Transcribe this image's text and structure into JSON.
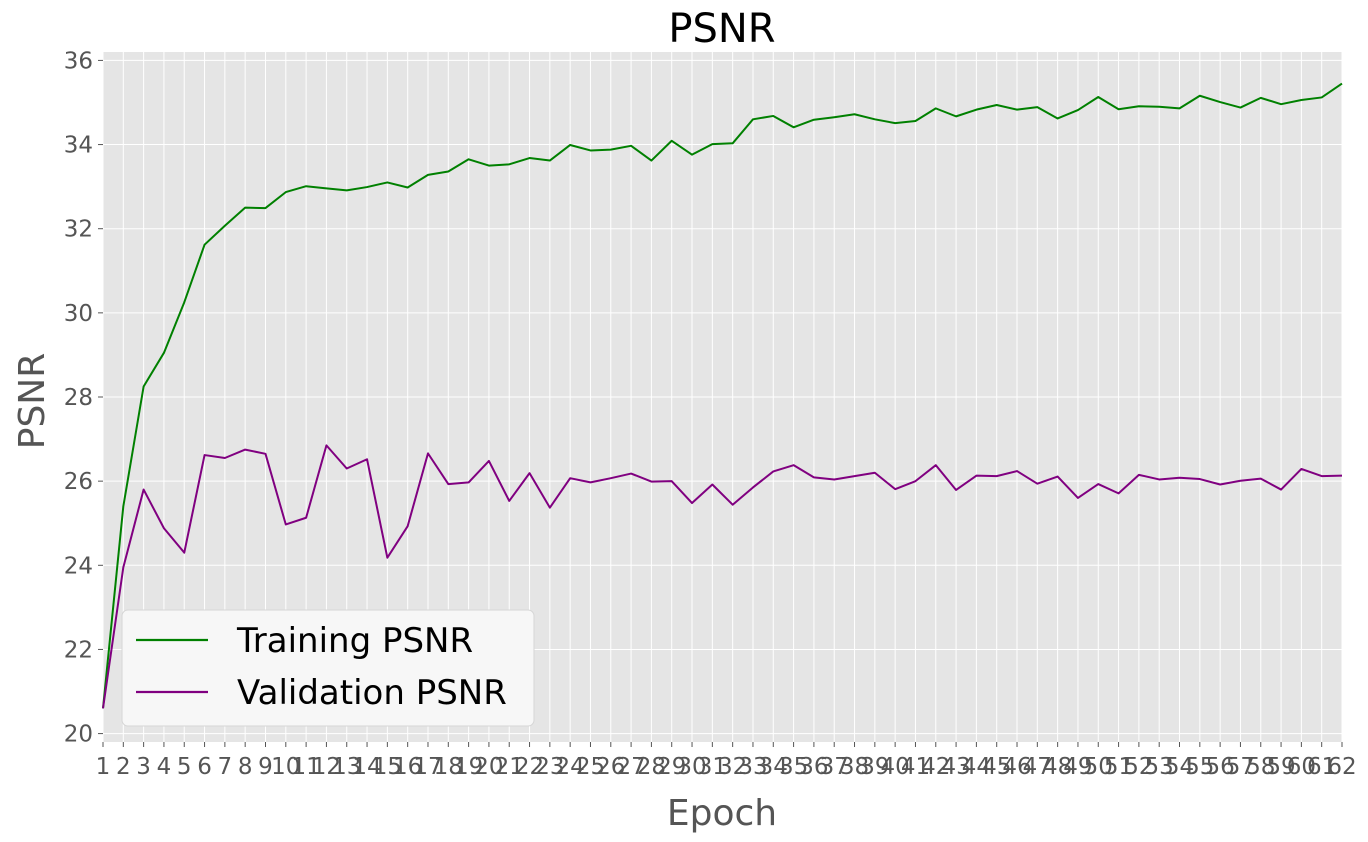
{
  "chart_data": {
    "type": "line",
    "title": "PSNR",
    "xlabel": "Epoch",
    "ylabel": "PSNR",
    "xlim": [
      1,
      62
    ],
    "ylim": [
      19.8,
      36.2
    ],
    "yticks": [
      20,
      22,
      24,
      26,
      28,
      30,
      32,
      34,
      36
    ],
    "grid": true,
    "legend_position": "lower-left",
    "x": [
      1,
      2,
      3,
      4,
      5,
      6,
      7,
      8,
      9,
      10,
      11,
      12,
      13,
      14,
      15,
      16,
      17,
      18,
      19,
      20,
      21,
      22,
      23,
      24,
      25,
      26,
      27,
      28,
      29,
      30,
      31,
      32,
      33,
      34,
      35,
      36,
      37,
      38,
      39,
      40,
      41,
      42,
      43,
      44,
      45,
      46,
      47,
      48,
      49,
      50,
      51,
      52,
      53,
      54,
      55,
      56,
      57,
      58,
      59,
      60,
      61,
      62
    ],
    "series": [
      {
        "name": "Training PSNR",
        "color": "#008000",
        "values": [
          20.6,
          25.4,
          28.25,
          29.05,
          30.25,
          31.62,
          32.07,
          32.5,
          32.49,
          32.87,
          33.01,
          32.96,
          32.91,
          32.99,
          33.1,
          32.98,
          33.28,
          33.36,
          33.65,
          33.5,
          33.53,
          33.68,
          33.62,
          33.99,
          33.86,
          33.88,
          33.97,
          33.62,
          34.09,
          33.76,
          34.01,
          34.03,
          34.6,
          34.68,
          34.41,
          34.59,
          34.65,
          34.72,
          34.6,
          34.51,
          34.56,
          34.86,
          34.67,
          34.83,
          34.94,
          34.83,
          34.89,
          34.62,
          34.82,
          35.13,
          34.84,
          34.91,
          34.9,
          34.86,
          35.16,
          35.01,
          34.88,
          35.11,
          34.96,
          35.06,
          35.12,
          35.45
        ]
      },
      {
        "name": "Validation PSNR",
        "color": "#800080",
        "values": [
          20.6,
          23.95,
          25.8,
          24.88,
          24.3,
          26.62,
          26.55,
          26.75,
          26.65,
          24.97,
          25.13,
          26.85,
          26.3,
          26.52,
          24.18,
          24.93,
          26.66,
          25.93,
          25.97,
          26.48,
          25.53,
          26.19,
          25.37,
          26.07,
          25.97,
          26.07,
          26.18,
          25.99,
          26,
          25.48,
          25.92,
          25.44,
          25.85,
          26.23,
          26.38,
          26.09,
          26.04,
          26.12,
          26.2,
          25.81,
          26,
          26.38,
          25.79,
          26.13,
          26.12,
          26.24,
          25.94,
          26.11,
          25.6,
          25.93,
          25.71,
          26.15,
          26.04,
          26.08,
          26.05,
          25.92,
          26.01,
          26.06,
          25.8,
          26.29,
          26.12,
          26.13
        ]
      }
    ]
  }
}
